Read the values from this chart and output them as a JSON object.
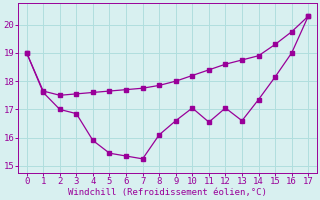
{
  "x": [
    0,
    1,
    2,
    3,
    4,
    5,
    6,
    7,
    8,
    9,
    10,
    11,
    12,
    13,
    14,
    15,
    16,
    17
  ],
  "y_windchill": [
    19.0,
    17.6,
    17.0,
    16.85,
    15.9,
    15.45,
    15.35,
    15.25,
    16.1,
    16.6,
    17.05,
    16.55,
    17.05,
    16.6,
    17.35,
    18.15,
    19.0,
    20.3
  ],
  "y_temp": [
    19.0,
    17.65,
    17.5,
    17.55,
    17.6,
    17.65,
    17.7,
    17.75,
    17.85,
    18.0,
    18.2,
    18.4,
    18.6,
    18.75,
    18.9,
    19.3,
    19.75,
    20.3
  ],
  "line_color": "#990099",
  "bg_color": "#d8f0f0",
  "grid_color": "#b0dede",
  "xlabel": "Windchill (Refroidissement éolien,°C)",
  "xlim": [
    -0.5,
    17.5
  ],
  "ylim": [
    14.75,
    20.75
  ],
  "yticks": [
    15,
    16,
    17,
    18,
    19,
    20
  ],
  "xticks": [
    0,
    1,
    2,
    3,
    4,
    5,
    6,
    7,
    8,
    9,
    10,
    11,
    12,
    13,
    14,
    15,
    16,
    17
  ],
  "tick_fontsize": 6.5,
  "xlabel_fontsize": 6.5,
  "marker_size": 2.5,
  "line_width": 0.9
}
